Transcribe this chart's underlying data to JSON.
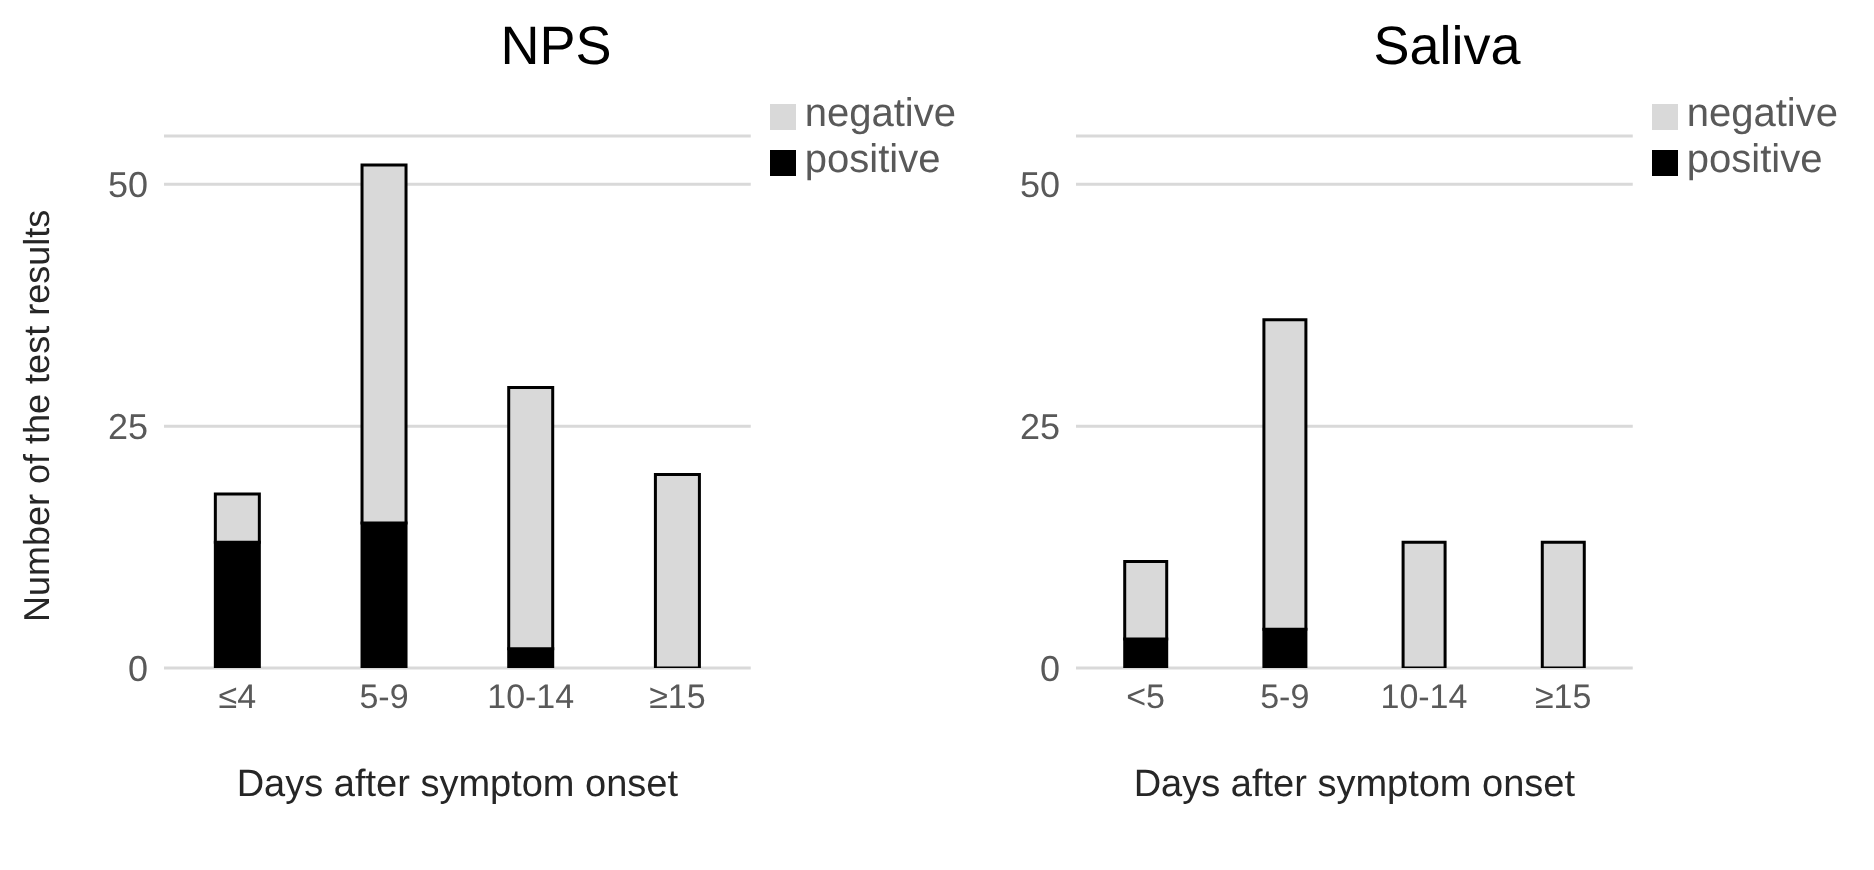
{
  "chart_data": [
    {
      "type": "bar",
      "title": "NPS",
      "xlabel": "Days after symptom onset",
      "ylabel": "Number of the test results",
      "categories": [
        "≤4",
        "5-9",
        "10-14",
        "≥15"
      ],
      "stacked": true,
      "series": [
        {
          "name": "positive",
          "color": "#000000",
          "values": [
            13,
            15,
            2,
            0
          ]
        },
        {
          "name": "negative",
          "color": "#d9d9d9",
          "values": [
            5,
            37,
            27,
            20
          ]
        }
      ],
      "ylim": [
        0,
        55
      ],
      "yticks": [
        0,
        25,
        50
      ],
      "grid": "y",
      "legend": "top right"
    },
    {
      "type": "bar",
      "title": "Saliva",
      "xlabel": "Days after symptom onset",
      "categories": [
        "<5",
        "5-9",
        "10-14",
        "≥15"
      ],
      "stacked": true,
      "series": [
        {
          "name": "positive",
          "color": "#000000",
          "values": [
            3,
            4,
            0,
            0
          ]
        },
        {
          "name": "negative",
          "color": "#d9d9d9",
          "values": [
            8,
            32,
            13,
            13
          ]
        }
      ],
      "ylim": [
        0,
        55
      ],
      "yticks": [
        0,
        25,
        50
      ],
      "grid": "y",
      "legend": "top right"
    }
  ]
}
